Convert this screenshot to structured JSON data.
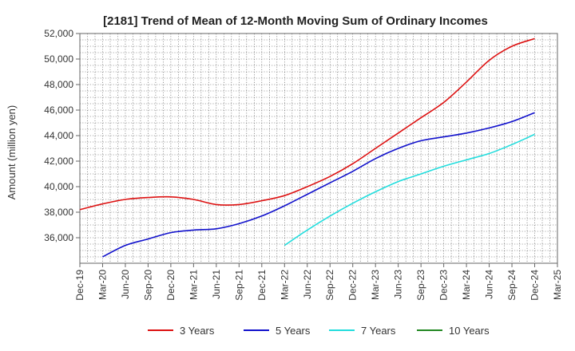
{
  "chart_data": {
    "type": "line",
    "title": "[2181]  Trend of Mean of 12-Month Moving Sum of Ordinary Incomes",
    "xlabel": "",
    "ylabel": "Amount (million yen)",
    "ylim": [
      34000,
      52000
    ],
    "yticks": [
      36000,
      38000,
      40000,
      42000,
      44000,
      46000,
      48000,
      50000,
      52000
    ],
    "ytick_labels": [
      "36,000",
      "38,000",
      "40,000",
      "42,000",
      "44,000",
      "46,000",
      "48,000",
      "50,000",
      "52,000"
    ],
    "x_tick_labels": [
      "Dec-19",
      "Mar-20",
      "Jun-20",
      "Sep-20",
      "Dec-20",
      "Mar-21",
      "Jun-21",
      "Sep-21",
      "Dec-21",
      "Mar-22",
      "Jun-22",
      "Sep-22",
      "Dec-22",
      "Mar-23",
      "Jun-23",
      "Sep-23",
      "Dec-23",
      "Mar-24",
      "Jun-24",
      "Sep-24",
      "Dec-24",
      "Mar-25"
    ],
    "grid": true,
    "legend_position": "bottom",
    "series": [
      {
        "name": "3 Years",
        "color": "#dd1111",
        "start_index": 0,
        "values": [
          38200,
          38650,
          39000,
          39150,
          39200,
          39000,
          38600,
          38600,
          38900,
          39300,
          40000,
          40800,
          41800,
          43000,
          44200,
          45400,
          46600,
          48200,
          49900,
          51000,
          51600
        ]
      },
      {
        "name": "5 Years",
        "color": "#1111cc",
        "start_index": 1,
        "values": [
          34500,
          35400,
          35900,
          36400,
          36600,
          36700,
          37100,
          37700,
          38500,
          39400,
          40300,
          41200,
          42200,
          43000,
          43600,
          43900,
          44200,
          44600,
          45100,
          45800
        ]
      },
      {
        "name": "7 Years",
        "color": "#22dddd",
        "start_index": 9,
        "values": [
          35400,
          36600,
          37700,
          38700,
          39600,
          40400,
          41000,
          41600,
          42100,
          42600,
          43300,
          44100
        ]
      },
      {
        "name": "10 Years",
        "color": "#228822",
        "start_index": 0,
        "values": []
      }
    ]
  }
}
